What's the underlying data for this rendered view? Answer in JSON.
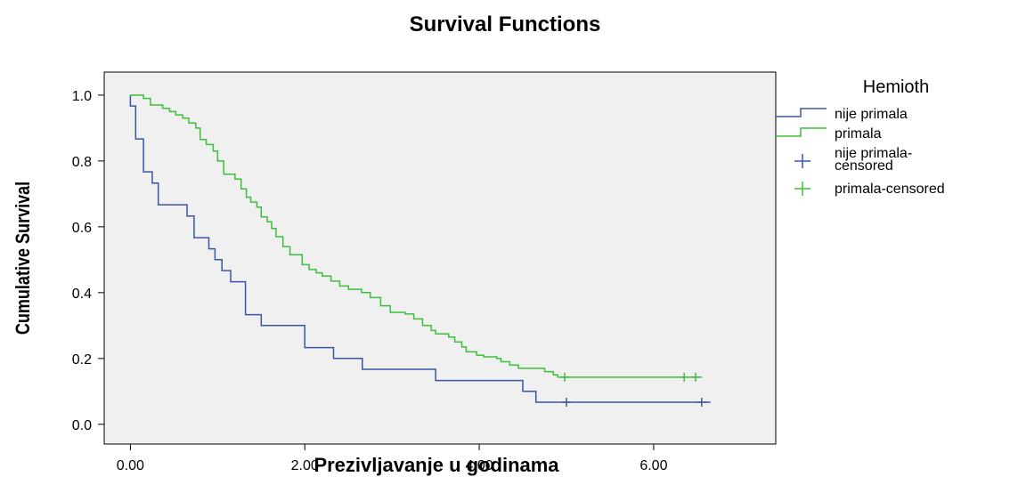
{
  "chart_data": {
    "type": "line",
    "step": true,
    "title": "Survival Functions",
    "xlabel": "Prezivljavanje u godinama",
    "ylabel": "Cumulative Survival",
    "xlim": [
      -0.3,
      7.4
    ],
    "ylim": [
      -0.06,
      1.07
    ],
    "xticks": [
      0,
      2,
      4,
      6
    ],
    "xtick_labels": [
      "0.00",
      "2.00",
      "4.00",
      "6.00"
    ],
    "yticks": [
      0.0,
      0.2,
      0.4,
      0.6,
      0.8,
      1.0
    ],
    "ytick_labels": [
      "0.0",
      "0.2",
      "0.4",
      "0.6",
      "0.8",
      "1.0"
    ],
    "grid": false,
    "background": "#f0f0f0",
    "legend": {
      "title": "Hemioth",
      "placement": "right",
      "entries": [
        {
          "label": "nije primala",
          "kind": "line",
          "color": "#3a55a4"
        },
        {
          "label": "primala",
          "kind": "line",
          "color": "#3cbf3c"
        },
        {
          "label": "nije primala-censored",
          "label_lines": [
            "nije primala-",
            "censored"
          ],
          "kind": "censor",
          "color": "#3a55a4"
        },
        {
          "label": "primala-censored",
          "kind": "censor",
          "color": "#3cbf3c"
        }
      ]
    },
    "series": [
      {
        "name": "nije primala",
        "color": "#3a55a4",
        "steps": [
          [
            0.0,
            1.0
          ],
          [
            0.0,
            0.967
          ],
          [
            0.06,
            0.867
          ],
          [
            0.15,
            0.767
          ],
          [
            0.25,
            0.733
          ],
          [
            0.32,
            0.667
          ],
          [
            0.65,
            0.633
          ],
          [
            0.73,
            0.567
          ],
          [
            0.9,
            0.533
          ],
          [
            0.97,
            0.5
          ],
          [
            1.05,
            0.467
          ],
          [
            1.15,
            0.433
          ],
          [
            1.32,
            0.333
          ],
          [
            1.5,
            0.3
          ],
          [
            2.0,
            0.233
          ],
          [
            2.33,
            0.2
          ],
          [
            2.66,
            0.167
          ],
          [
            3.5,
            0.133
          ],
          [
            4.5,
            0.1
          ],
          [
            4.65,
            0.067
          ],
          [
            6.65,
            0.067
          ]
        ],
        "censored": [
          [
            5.0,
            0.067
          ],
          [
            6.55,
            0.067
          ]
        ]
      },
      {
        "name": "primala",
        "color": "#3cbf3c",
        "steps": [
          [
            0.0,
            1.0
          ],
          [
            0.15,
            0.99
          ],
          [
            0.23,
            0.97
          ],
          [
            0.37,
            0.96
          ],
          [
            0.45,
            0.95
          ],
          [
            0.52,
            0.94
          ],
          [
            0.6,
            0.93
          ],
          [
            0.67,
            0.915
          ],
          [
            0.75,
            0.9
          ],
          [
            0.8,
            0.865
          ],
          [
            0.87,
            0.85
          ],
          [
            0.95,
            0.83
          ],
          [
            1.0,
            0.8
          ],
          [
            1.07,
            0.76
          ],
          [
            1.2,
            0.745
          ],
          [
            1.27,
            0.715
          ],
          [
            1.33,
            0.69
          ],
          [
            1.38,
            0.675
          ],
          [
            1.45,
            0.66
          ],
          [
            1.5,
            0.63
          ],
          [
            1.57,
            0.615
          ],
          [
            1.62,
            0.595
          ],
          [
            1.67,
            0.57
          ],
          [
            1.75,
            0.54
          ],
          [
            1.83,
            0.515
          ],
          [
            1.97,
            0.485
          ],
          [
            2.05,
            0.47
          ],
          [
            2.13,
            0.46
          ],
          [
            2.2,
            0.45
          ],
          [
            2.3,
            0.435
          ],
          [
            2.4,
            0.42
          ],
          [
            2.5,
            0.41
          ],
          [
            2.65,
            0.4
          ],
          [
            2.75,
            0.385
          ],
          [
            2.87,
            0.36
          ],
          [
            2.98,
            0.34
          ],
          [
            3.15,
            0.335
          ],
          [
            3.25,
            0.32
          ],
          [
            3.35,
            0.3
          ],
          [
            3.45,
            0.285
          ],
          [
            3.5,
            0.275
          ],
          [
            3.65,
            0.265
          ],
          [
            3.72,
            0.25
          ],
          [
            3.8,
            0.235
          ],
          [
            3.85,
            0.22
          ],
          [
            3.97,
            0.21
          ],
          [
            4.05,
            0.205
          ],
          [
            4.2,
            0.2
          ],
          [
            4.25,
            0.19
          ],
          [
            4.35,
            0.18
          ],
          [
            4.45,
            0.17
          ],
          [
            4.75,
            0.16
          ],
          [
            4.85,
            0.15
          ],
          [
            4.9,
            0.143
          ],
          [
            6.55,
            0.143
          ]
        ],
        "censored": [
          [
            4.98,
            0.143
          ],
          [
            6.35,
            0.143
          ],
          [
            6.48,
            0.143
          ]
        ]
      }
    ]
  }
}
